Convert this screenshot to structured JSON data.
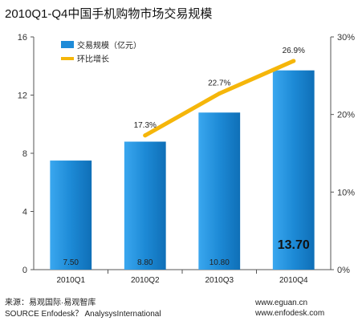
{
  "title": "2010Q1-Q4中国手机购物市场交易规模",
  "chart_data": {
    "type": "bar",
    "categories": [
      "2010Q1",
      "2010Q2",
      "2010Q3",
      "2010Q4"
    ],
    "series": [
      {
        "name": "交易规模（亿元）",
        "kind": "bar",
        "axis": "left",
        "values": [
          7.5,
          8.8,
          10.8,
          13.7
        ],
        "labels": [
          "7.50",
          "8.80",
          "10.80",
          "13.70"
        ],
        "color": "#1e8bd8"
      },
      {
        "name": "环比增长",
        "kind": "line",
        "axis": "right",
        "values": [
          null,
          17.3,
          22.7,
          26.9
        ],
        "labels": [
          "",
          "17.3%",
          "22.7%",
          "26.9%"
        ],
        "color": "#f5b60a"
      }
    ],
    "y_left": {
      "min": 0,
      "max": 16,
      "ticks": [
        "0",
        "4",
        "8",
        "12",
        "16"
      ]
    },
    "y_right": {
      "min": 0,
      "max": 30,
      "ticks": [
        "0%",
        "10%",
        "20%",
        "30%"
      ]
    },
    "grid": false,
    "legend": "top-left"
  },
  "footer": {
    "source_line1": "来源：易观国际·易观智库",
    "source_line2": "SOURCE Enfodesk？ AnalysysInternational",
    "url1": "www.eguan.cn",
    "url2": "www.enfodesk.com"
  }
}
